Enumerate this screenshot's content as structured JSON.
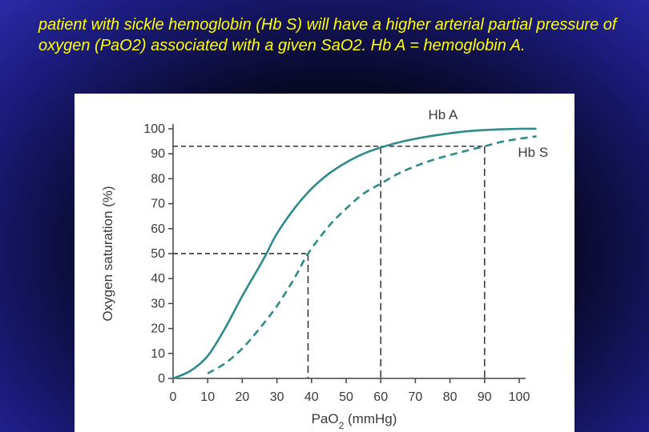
{
  "slide": {
    "text": "patient with sickle hemoglobin (Hb S) will have a higher arterial partial pressure of oxygen (PaO2) associated with a given SaO2. Hb A = hemoglobin A."
  },
  "colors": {
    "text": "#ffff00",
    "curve": "#2e8b8b",
    "guide": "#222222"
  },
  "chart_data": {
    "type": "line",
    "title": "",
    "xlabel": "PaO",
    "xlabel_sub": "2",
    "xlabel_unit": " (mmHg)",
    "ylabel": "Oxygen saturation (%)",
    "xlim": [
      0,
      100
    ],
    "ylim": [
      0,
      100
    ],
    "xticks": [
      "0",
      "10",
      "20",
      "30",
      "40",
      "50",
      "60",
      "70",
      "80",
      "90",
      "100"
    ],
    "yticks": [
      "0",
      "10",
      "20",
      "30",
      "40",
      "50",
      "60",
      "70",
      "80",
      "90",
      "100"
    ],
    "grid": false,
    "series": [
      {
        "name": "Hb A",
        "style": "solid",
        "x": [
          0,
          5,
          10,
          15,
          20,
          25,
          27,
          30,
          35,
          40,
          45,
          50,
          55,
          60,
          65,
          70,
          75,
          80,
          85,
          90,
          95,
          100,
          105
        ],
        "y": [
          0,
          3,
          9,
          20,
          33,
          45,
          50,
          58,
          68,
          76,
          82,
          86.5,
          90,
          92.5,
          94.5,
          96,
          97.2,
          98.2,
          99,
          99.5,
          99.8,
          100,
          100
        ]
      },
      {
        "name": "Hb S",
        "style": "dashed",
        "x": [
          10,
          15,
          20,
          25,
          30,
          35,
          39,
          45,
          50,
          55,
          60,
          65,
          70,
          75,
          80,
          85,
          90,
          95,
          100,
          105
        ],
        "y": [
          2,
          6,
          12,
          20,
          29,
          40,
          50,
          61,
          68,
          74,
          78,
          82,
          85,
          87.5,
          89.5,
          91.3,
          93,
          94.8,
          96,
          97
        ]
      }
    ],
    "guides": {
      "sat50_pao2_a": 27,
      "sat50_pao2_s": 39,
      "sat93_pao2_a": 60,
      "sat93_pao2_s": 90,
      "sat_high": 93,
      "sat_low": 50
    }
  }
}
